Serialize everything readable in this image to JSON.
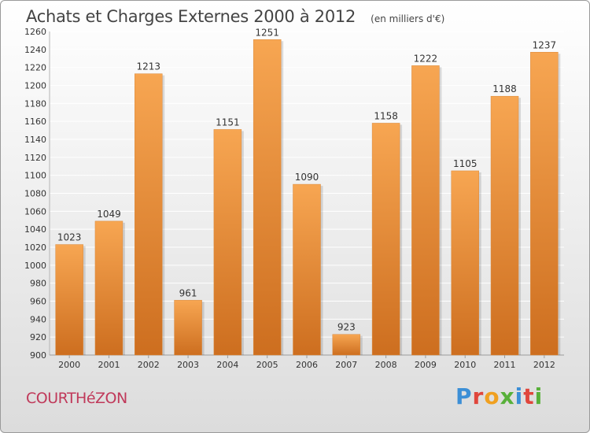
{
  "header": {
    "title": "Achats et Charges Externes 2000 à 2012",
    "subtitle": "(en milliers d'€)"
  },
  "footer": {
    "place": "COURTHéZON",
    "brand_letters": [
      "P",
      "r",
      "o",
      "x",
      "i",
      "t",
      "i"
    ],
    "brand_colors": [
      "#3c8fd6",
      "#e0463c",
      "#f0a020",
      "#58b03a",
      "#3c8fd6",
      "#e0463c",
      "#58b03a"
    ]
  },
  "colors": {
    "bar_top": "#f7a652",
    "bar_bottom": "#cd6e1f",
    "grid": "#ffffff",
    "axis_text": "#333333"
  },
  "chart_data": {
    "type": "bar",
    "categories": [
      "2000",
      "2001",
      "2002",
      "2003",
      "2004",
      "2005",
      "2006",
      "2007",
      "2008",
      "2009",
      "2010",
      "2011",
      "2012"
    ],
    "values": [
      1023,
      1049,
      1213,
      961,
      1151,
      1251,
      1090,
      923,
      1158,
      1222,
      1105,
      1188,
      1237
    ],
    "data_labels": [
      "1023",
      "1049",
      "1213",
      "961",
      "1151",
      "1251",
      "1090",
      "923",
      "1158",
      "1222",
      "1105",
      "1188",
      "1237"
    ],
    "yticks": [
      900,
      920,
      940,
      960,
      980,
      1000,
      1020,
      1040,
      1060,
      1080,
      1100,
      1120,
      1140,
      1160,
      1180,
      1200,
      1220,
      1240,
      1260
    ],
    "ylim": [
      900,
      1260
    ],
    "grid": true,
    "legend": "none"
  }
}
